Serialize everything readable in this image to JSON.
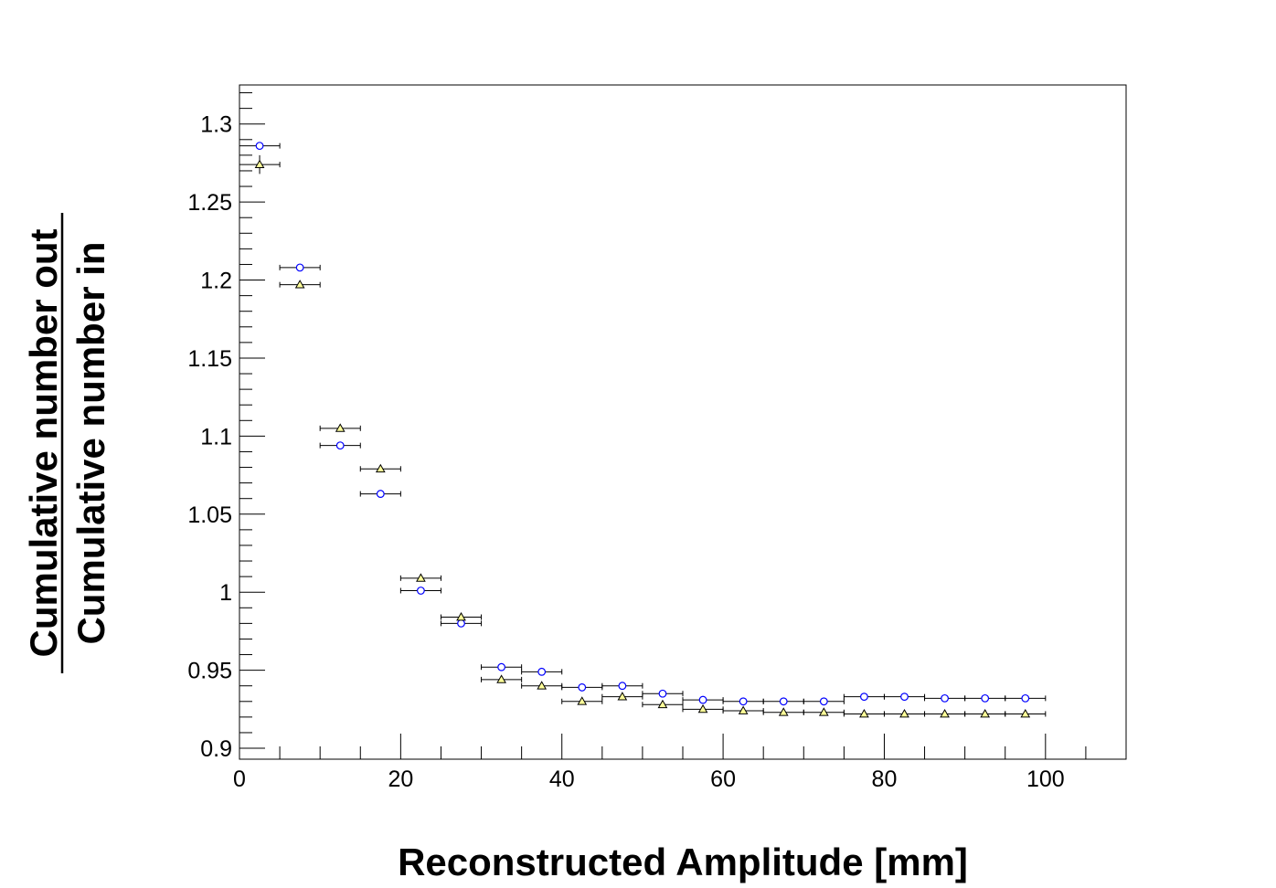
{
  "chart_data": {
    "type": "scatter",
    "xlabel": "Reconstructed Amplitude [mm]",
    "ylabel": {
      "numerator": "Cumulative number out",
      "denominator": "Cumulative number in"
    },
    "xlim": [
      0,
      110
    ],
    "ylim": [
      0.893,
      1.325
    ],
    "x_ticks": [
      0,
      20,
      40,
      60,
      80,
      100
    ],
    "y_ticks": [
      0.9,
      0.95,
      1,
      1.05,
      1.1,
      1.15,
      1.2,
      1.25,
      1.3
    ],
    "grid": false,
    "x_error": 2.5,
    "series": [
      {
        "marker": "circle",
        "color": "#0000ff",
        "fill": "#ffffff",
        "x": [
          2.5,
          7.5,
          12.5,
          17.5,
          22.5,
          27.5,
          32.5,
          37.5,
          42.5,
          47.5,
          52.5,
          57.5,
          62.5,
          67.5,
          72.5,
          77.5,
          82.5,
          87.5,
          92.5,
          97.5
        ],
        "y": [
          1.286,
          1.208,
          1.094,
          1.063,
          1.001,
          0.98,
          0.952,
          0.949,
          0.939,
          0.94,
          0.935,
          0.931,
          0.93,
          0.93,
          0.93,
          0.933,
          0.933,
          0.932,
          0.932,
          0.932
        ],
        "y_err": [
          0.002,
          0.001,
          0.001,
          0.001,
          0.001,
          0.001,
          0.001,
          0.001,
          0.001,
          0.001,
          0.001,
          0.001,
          0.001,
          0.001,
          0.001,
          0.001,
          0.001,
          0.001,
          0.001,
          0.001
        ]
      },
      {
        "marker": "triangle",
        "color": "#000000",
        "fill": "#ffff99",
        "x": [
          2.5,
          7.5,
          12.5,
          17.5,
          22.5,
          27.5,
          32.5,
          37.5,
          42.5,
          47.5,
          52.5,
          57.5,
          62.5,
          67.5,
          72.5,
          77.5,
          82.5,
          87.5,
          92.5,
          97.5
        ],
        "y": [
          1.274,
          1.197,
          1.105,
          1.079,
          1.009,
          0.984,
          0.944,
          0.94,
          0.93,
          0.933,
          0.928,
          0.925,
          0.924,
          0.923,
          0.923,
          0.922,
          0.922,
          0.922,
          0.922,
          0.922
        ],
        "y_err": [
          0.006,
          0.002,
          0.001,
          0.001,
          0.001,
          0.001,
          0.001,
          0.001,
          0.001,
          0.001,
          0.001,
          0.001,
          0.001,
          0.001,
          0.001,
          0.001,
          0.001,
          0.001,
          0.001,
          0.001
        ]
      }
    ]
  }
}
